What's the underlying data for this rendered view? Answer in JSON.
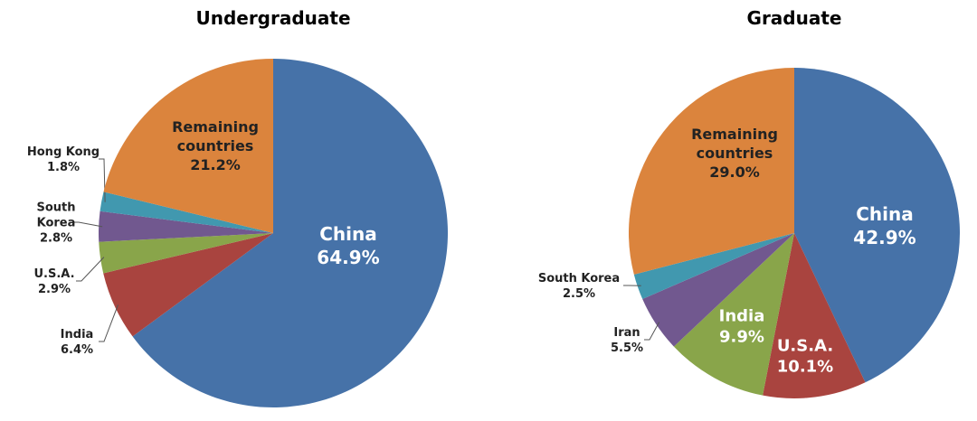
{
  "chart_data": [
    {
      "type": "pie",
      "title": "Undergraduate",
      "categories": [
        "China",
        "India",
        "U.S.A.",
        "South Korea",
        "Hong Kong",
        "Remaining countries"
      ],
      "values": [
        64.9,
        6.4,
        2.9,
        2.8,
        1.8,
        21.2
      ],
      "value_labels": [
        "64.9%",
        "6.4%",
        "2.9%",
        "2.8%",
        "1.8%",
        "21.2%"
      ],
      "colors": [
        "#4672a8",
        "#a9443f",
        "#89a54a",
        "#71588f",
        "#4198af",
        "#db843d"
      ]
    },
    {
      "type": "pie",
      "title": "Graduate",
      "categories": [
        "China",
        "U.S.A.",
        "India",
        "Iran",
        "South Korea",
        "Remaining countries"
      ],
      "values": [
        42.9,
        10.1,
        9.9,
        5.5,
        2.5,
        29.0
      ],
      "value_labels": [
        "42.9%",
        "10.1%",
        "9.9%",
        "5.5%",
        "2.5%",
        "29.0%"
      ],
      "colors": [
        "#4672a8",
        "#a9443f",
        "#89a54a",
        "#71588f",
        "#4198af",
        "#db843d"
      ]
    }
  ]
}
